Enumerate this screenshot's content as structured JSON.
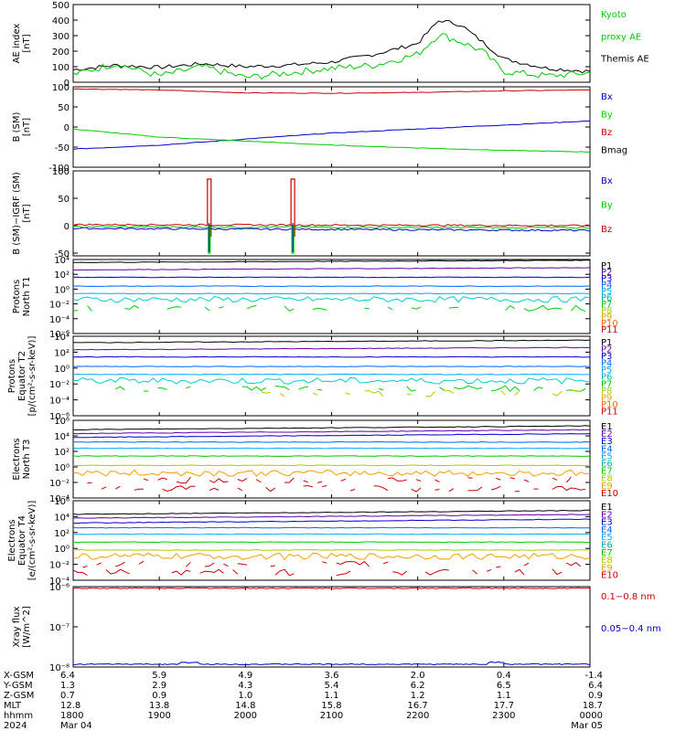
{
  "colors": {
    "black": "#000000",
    "green": "#00cc00",
    "blue": "#0000cc",
    "red": "#cc0000",
    "P1": "#000000",
    "P2": "#6600aa",
    "P3": "#0000cc",
    "P4": "#0066ff",
    "P5": "#00aaff",
    "P6": "#00b0b0",
    "P7": "#00cc00",
    "P8": "#aacc00",
    "P9": "#ddaa00",
    "P10": "#ff6600",
    "P11": "#cc0000"
  },
  "chart_data": [
    {
      "type": "line",
      "id": "ae",
      "ylabel": [
        "AE index",
        "[nT]"
      ],
      "ylim": [
        0,
        500
      ],
      "yticks": [
        "500",
        "400",
        "300",
        "200",
        "100",
        "0"
      ],
      "legend": [
        {
          "label": "Kyoto",
          "color": "#00cc00"
        },
        {
          "label": "proxy AE",
          "color": "#00cc00"
        },
        {
          "label": "Themis AE",
          "color": "#000000"
        }
      ],
      "x_hours": [
        0,
        0.5,
        1,
        1.5,
        2,
        2.5,
        3,
        3.5,
        4,
        4.25,
        4.5,
        4.75,
        5,
        5.5,
        6
      ],
      "series": [
        {
          "name": "Themis AE",
          "color": "#000000",
          "values": [
            80,
            110,
            95,
            120,
            100,
            110,
            130,
            180,
            250,
            400,
            370,
            260,
            150,
            90,
            70
          ]
        },
        {
          "name": "Kyoto proxy AE",
          "color": "#00cc00",
          "values": [
            50,
            120,
            40,
            100,
            30,
            60,
            90,
            110,
            180,
            310,
            260,
            200,
            70,
            40,
            60
          ]
        }
      ]
    },
    {
      "type": "line",
      "id": "bsm",
      "ylabel": [
        "B (SM)",
        "[nT]"
      ],
      "ylim": [
        -100,
        100
      ],
      "yticks": [
        "100",
        "50",
        "0",
        "-50",
        "-100"
      ],
      "legend": [
        {
          "label": "Bx",
          "color": "#0000cc"
        },
        {
          "label": "By",
          "color": "#00cc00"
        },
        {
          "label": "Bz",
          "color": "#cc0000"
        },
        {
          "label": "Bmag",
          "color": "#000000"
        }
      ],
      "x_hours": [
        0,
        1,
        2,
        3,
        4,
        5,
        6
      ],
      "series": [
        {
          "name": "Bmag",
          "color": "#000000",
          "values": [
            112,
            108,
            102,
            102,
            106,
            112,
            113
          ]
        },
        {
          "name": "Bz",
          "color": "#cc0000",
          "values": [
            95,
            92,
            85,
            84,
            86,
            90,
            92
          ]
        },
        {
          "name": "Bx",
          "color": "#0000cc",
          "values": [
            -55,
            -45,
            -30,
            -15,
            -5,
            5,
            15
          ]
        },
        {
          "name": "By",
          "color": "#00cc00",
          "values": [
            -5,
            -25,
            -35,
            -45,
            -52,
            -58,
            -62
          ]
        }
      ]
    },
    {
      "type": "line",
      "id": "bdelta",
      "ylabel": [
        "B (SM)−IGRF (SM)",
        "[nT]"
      ],
      "ylim": [
        -55,
        100
      ],
      "yticks": [
        "100",
        "50",
        "0",
        "-50"
      ],
      "legend": [
        {
          "label": "Bx",
          "color": "#0000cc"
        },
        {
          "label": "By",
          "color": "#00cc00"
        },
        {
          "label": "Bz",
          "color": "#cc0000"
        }
      ],
      "spike_hours": [
        1.58,
        2.55
      ],
      "series": [
        {
          "name": "Bx",
          "color": "#0000cc",
          "base": -5
        },
        {
          "name": "By",
          "color": "#00cc00",
          "base": -2
        },
        {
          "name": "Bz",
          "color": "#cc0000",
          "base": 2
        }
      ]
    },
    {
      "type": "line",
      "id": "pnorth",
      "ylabel": [
        "Protons",
        "North T1"
      ],
      "ylim_log": [
        -6,
        4
      ],
      "yticks": [
        "10⁴",
        "10²",
        "10⁰",
        "10⁻²",
        "10⁻⁴",
        "10⁻⁶"
      ],
      "legend": [
        "P1",
        "P2",
        "P3",
        "P4",
        "P5",
        "P6",
        "P7",
        "P8",
        "P9",
        "P10",
        "P11"
      ],
      "log_levels": [
        3.6,
        2.6,
        1.6,
        0.4,
        -0.6,
        -1.4,
        -2.6
      ]
    },
    {
      "type": "line",
      "id": "peq",
      "ylabel": [
        "Protons",
        "Equator T2",
        "[p/(cm²-s-sr-keV)]"
      ],
      "ylim_log": [
        -6,
        4
      ],
      "yticks": [
        "10⁴",
        "10²",
        "10⁰",
        "10⁻²",
        "10⁻⁴",
        "10⁻⁶"
      ],
      "legend": [
        "P1",
        "P2",
        "P3",
        "P4",
        "P5",
        "P6",
        "P7",
        "P8",
        "P9",
        "P10",
        "P11"
      ],
      "log_levels": [
        3.2,
        2.3,
        1.4,
        0.2,
        -0.8,
        -1.6,
        -2.6,
        -3.2
      ]
    },
    {
      "type": "line",
      "id": "enorth",
      "ylabel": [
        "Electrons",
        "North T3"
      ],
      "ylim_log": [
        -4,
        6
      ],
      "yticks": [
        "10⁶",
        "10⁴",
        "10²",
        "10⁰",
        "10⁻²",
        "10⁻⁴"
      ],
      "legend": [
        "E1",
        "E2",
        "E3",
        "E4",
        "E5",
        "E6",
        "E7",
        "E8",
        "E9",
        "E10"
      ],
      "log_levels": [
        4.8,
        4.3,
        3.8,
        3.2,
        2.4,
        1.4,
        0.2,
        -0.8,
        -1.7,
        -2.8
      ]
    },
    {
      "type": "line",
      "id": "eeq",
      "ylabel": [
        "Electrons",
        "Equator T4",
        "[e/(cm²-s-sr-keV)]"
      ],
      "ylim_log": [
        -4,
        6
      ],
      "yticks": [
        "10⁶",
        "10⁴",
        "10²",
        "10⁰",
        "10⁻²",
        "10⁻⁴"
      ],
      "legend": [
        "E1",
        "E2",
        "E3",
        "E4",
        "E5",
        "E6",
        "E7",
        "E8",
        "E9",
        "E10"
      ],
      "log_levels": [
        4.3,
        3.8,
        3.2,
        2.6,
        1.8,
        0.8,
        -0.2,
        -1.0,
        -2.0,
        -3.0
      ]
    },
    {
      "type": "line",
      "id": "xray",
      "ylabel": [
        "Xray flux",
        "[W/m^2]"
      ],
      "ylim_log": [
        -8,
        -6
      ],
      "yticks": [
        "10⁻⁶",
        "10⁻⁷",
        "10⁻⁸"
      ],
      "legend": [
        {
          "label": "0.1−0.8 nm",
          "color": "#cc0000"
        },
        {
          "label": "0.05−0.4 nm",
          "color": "#0000cc"
        }
      ],
      "series": [
        {
          "name": "0.1−0.8 nm",
          "color": "#cc0000",
          "log_value": -6.04
        },
        {
          "name": "0.05−0.4 nm",
          "color": "#0000cc",
          "log_value": -7.93
        }
      ]
    }
  ],
  "ephemeris": {
    "row_labels": [
      "X-GSM",
      "Y-GSM",
      "Z-GSM",
      "MLT",
      "hhmm",
      "2024"
    ],
    "columns": [
      [
        "6.4",
        "1.3",
        "0.7",
        "12.8",
        "1800",
        "Mar 04"
      ],
      [
        "5.9",
        "2.9",
        "0.9",
        "13.8",
        "1900",
        ""
      ],
      [
        "4.9",
        "4.3",
        "1.0",
        "14.8",
        "2000",
        ""
      ],
      [
        "3.6",
        "5.4",
        "1.1",
        "15.8",
        "2100",
        ""
      ],
      [
        "2.0",
        "6.2",
        "1.2",
        "16.7",
        "2200",
        ""
      ],
      [
        "0.4",
        "6.5",
        "1.1",
        "17.7",
        "2300",
        ""
      ],
      [
        "-1.4",
        "6.4",
        "0.9",
        "18.7",
        "0000",
        "Mar 05"
      ]
    ]
  }
}
